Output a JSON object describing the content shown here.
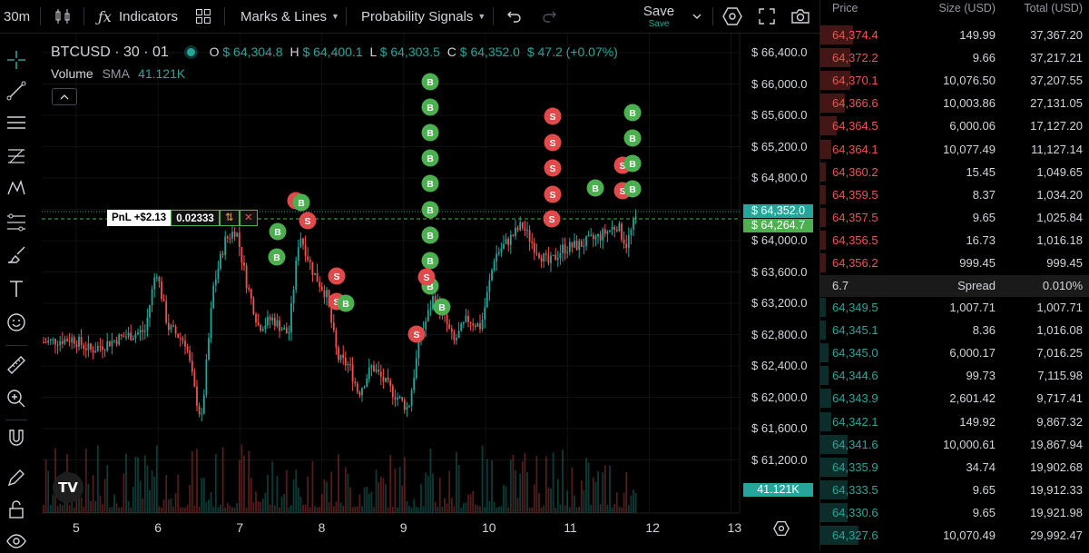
{
  "toolbar": {
    "interval": "30m",
    "indicators_label": "Indicators",
    "marks_label": "Marks & Lines",
    "signals_label": "Probability Signals",
    "save_label": "Save",
    "save_sub": "Save"
  },
  "legend": {
    "symbol": "BTCUSD · 30 · 01",
    "o_label": "O",
    "o_value": "$ 64,304.8",
    "h_label": "H",
    "h_value": "$ 64,400.1",
    "l_label": "L",
    "l_value": "$ 64,303.5",
    "c_label": "C",
    "c_value": "$ 64,352.0",
    "change": "$ 47.2 (+0.07%)",
    "volume_label": "Volume",
    "sma_label": "SMA",
    "sma_value": "41.121K"
  },
  "position": {
    "pnl": "PnL +$2.13",
    "qty": "0.02333"
  },
  "price_axis": [
    "$ 66,400.0",
    "$ 66,000.0",
    "$ 65,600.0",
    "$ 65,200.0",
    "$ 64,800.0",
    "$ 64,400.0",
    "$ 64,000.0",
    "$ 63,600.0",
    "$ 63,200.0",
    "$ 62,800.0",
    "$ 62,400.0",
    "$ 62,000.0",
    "$ 61,600.0",
    "$ 61,200.0"
  ],
  "price_tags": {
    "last": "$ 64,352.0",
    "entry": "$ 64,264.7",
    "volume": "41.121K"
  },
  "time_axis": [
    "5",
    "6",
    "7",
    "8",
    "9",
    "10",
    "11",
    "12",
    "13"
  ],
  "signals": [
    {
      "label": "B",
      "kind": "buy"
    },
    {
      "label": "S",
      "kind": "sell"
    }
  ],
  "colors": {
    "up": "#26a69a",
    "down": "#ef5350",
    "buy": "#4caf50",
    "sell": "#e04a4a",
    "accent": "#2962ff"
  },
  "orderbook": {
    "headers": {
      "price": "Price",
      "size": "Size (USD)",
      "total": "Total (USD)"
    },
    "asks": [
      {
        "price": "64,374.4",
        "size": "149.99",
        "total": "37,367.20",
        "depth": 0.12
      },
      {
        "price": "64,372.2",
        "size": "9.66",
        "total": "37,217.21",
        "depth": 0.11
      },
      {
        "price": "64,370.1",
        "size": "10,076.50",
        "total": "37,207.55",
        "depth": 0.11
      },
      {
        "price": "64,366.6",
        "size": "10,003.86",
        "total": "27,131.05",
        "depth": 0.09
      },
      {
        "price": "64,364.5",
        "size": "6,000.06",
        "total": "17,127.20",
        "depth": 0.06
      },
      {
        "price": "64,364.1",
        "size": "10,077.49",
        "total": "11,127.14",
        "depth": 0.04
      },
      {
        "price": "64,360.2",
        "size": "15.45",
        "total": "1,049.65",
        "depth": 0.01
      },
      {
        "price": "64,359.5",
        "size": "8.37",
        "total": "1,034.20",
        "depth": 0.01
      },
      {
        "price": "64,357.5",
        "size": "9.65",
        "total": "1,025.84",
        "depth": 0.01
      },
      {
        "price": "64,356.5",
        "size": "16.73",
        "total": "1,016.18",
        "depth": 0.01
      },
      {
        "price": "64,356.2",
        "size": "999.45",
        "total": "999.45",
        "depth": 0.01
      }
    ],
    "spread": {
      "value": "6.7",
      "label": "Spread",
      "pct": "0.010%"
    },
    "bids": [
      {
        "price": "64,349.5",
        "size": "1,007.71",
        "total": "1,007.71",
        "depth": 0.01
      },
      {
        "price": "64,345.1",
        "size": "8.36",
        "total": "1,016.08",
        "depth": 0.01
      },
      {
        "price": "64,345.0",
        "size": "6,000.17",
        "total": "7,016.25",
        "depth": 0.03
      },
      {
        "price": "64,344.6",
        "size": "99.73",
        "total": "7,115.98",
        "depth": 0.03
      },
      {
        "price": "64,343.9",
        "size": "2,601.42",
        "total": "9,717.41",
        "depth": 0.04
      },
      {
        "price": "64,342.1",
        "size": "149.92",
        "total": "9,867.32",
        "depth": 0.04
      },
      {
        "price": "64,341.6",
        "size": "10,000.61",
        "total": "19,867.94",
        "depth": 0.1
      },
      {
        "price": "64,335.9",
        "size": "34.74",
        "total": "19,902.68",
        "depth": 0.1
      },
      {
        "price": "64,333.5",
        "size": "9.65",
        "total": "19,912.33",
        "depth": 0.1
      },
      {
        "price": "64,330.6",
        "size": "9.65",
        "total": "19,921.98",
        "depth": 0.1
      },
      {
        "price": "64,327.6",
        "size": "10,070.49",
        "total": "29,992.47",
        "depth": 0.14
      }
    ]
  }
}
